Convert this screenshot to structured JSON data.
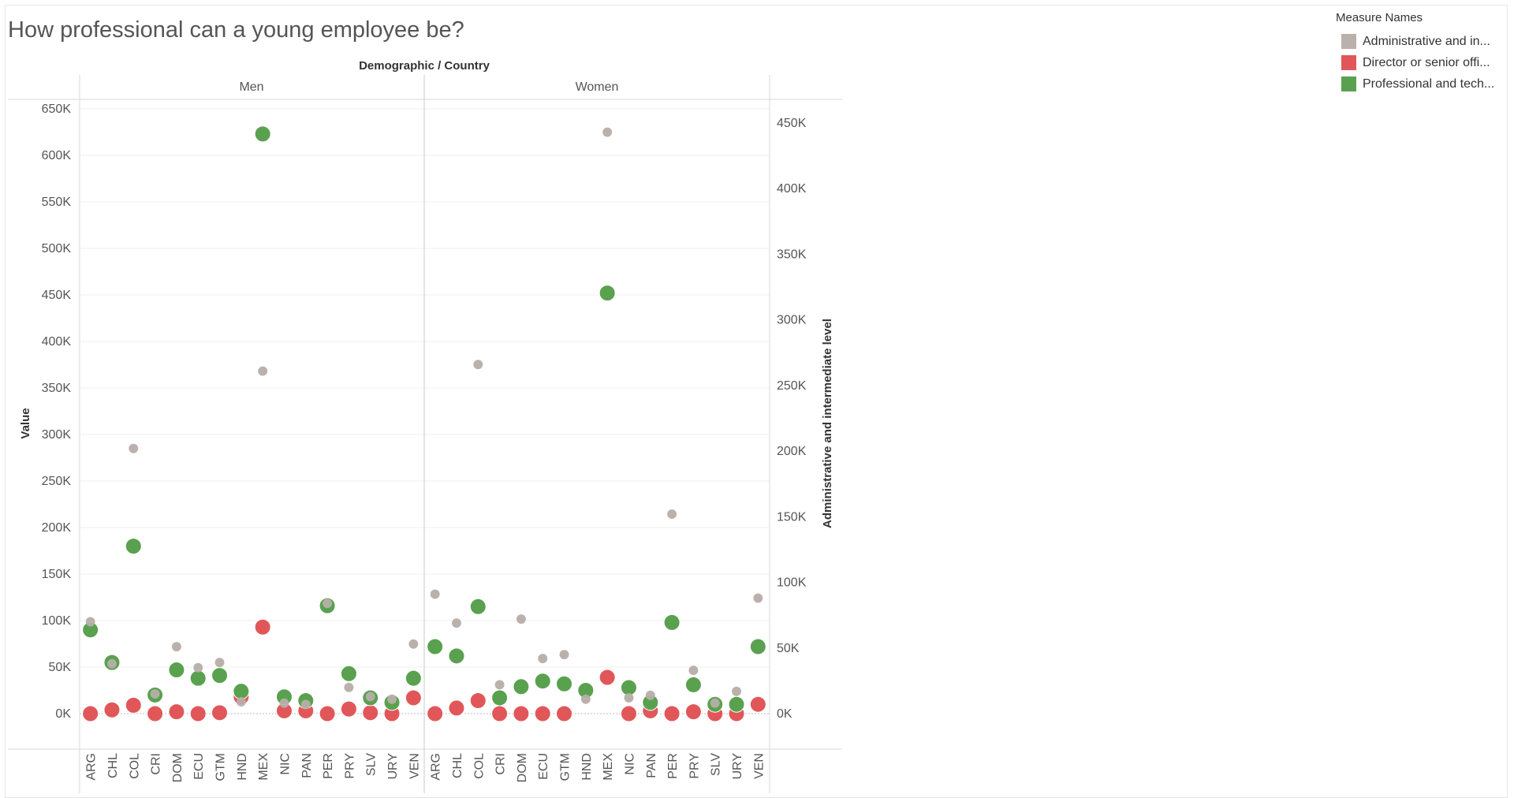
{
  "title": "How professional can a young employee be?",
  "legend": {
    "title": "Measure Names",
    "items": [
      {
        "label": "Administrative and in...",
        "color": "#bab0ac"
      },
      {
        "label": "Director or senior offi...",
        "color": "#e15759"
      },
      {
        "label": "Professional and tech...",
        "color": "#59a14f"
      }
    ]
  },
  "chart_data": {
    "type": "scatter",
    "title": "How professional can a young employee be?",
    "column_header": "Demographic / Country",
    "ylabel": "Value",
    "y2label": "Administrative and intermediate level",
    "ylim": [
      0,
      650000
    ],
    "y2lim": [
      0,
      450000
    ],
    "y_ticks": [
      "0K",
      "50K",
      "100K",
      "150K",
      "200K",
      "250K",
      "300K",
      "350K",
      "400K",
      "450K",
      "500K",
      "550K",
      "600K",
      "650K"
    ],
    "y2_ticks": [
      "0K",
      "50K",
      "100K",
      "150K",
      "200K",
      "250K",
      "300K",
      "350K",
      "400K",
      "450K"
    ],
    "grid": true,
    "panels": [
      "Men",
      "Women"
    ],
    "categories": [
      "ARG",
      "CHL",
      "COL",
      "CRI",
      "DOM",
      "ECU",
      "GTM",
      "HND",
      "MEX",
      "NIC",
      "PAN",
      "PER",
      "PRY",
      "SLV",
      "URY",
      "VEN"
    ],
    "series": [
      {
        "name": "Administrative and in...",
        "axis": "right",
        "color": "#bab0ac",
        "values": {
          "Men": [
            70000,
            38000,
            202000,
            15000,
            51000,
            35000,
            39000,
            9000,
            261000,
            8000,
            7000,
            84000,
            20000,
            13000,
            11000,
            53000
          ],
          "Women": [
            91000,
            69000,
            266000,
            22000,
            72000,
            42000,
            45000,
            11000,
            443000,
            12000,
            14000,
            152000,
            33000,
            8000,
            17000,
            88000
          ]
        }
      },
      {
        "name": "Director or senior offi...",
        "axis": "left",
        "color": "#e15759",
        "values": {
          "Men": [
            0,
            4000,
            9000,
            0,
            2000,
            0,
            1000,
            18000,
            93000,
            3000,
            3000,
            0,
            5000,
            1000,
            0,
            17000
          ],
          "Women": [
            0,
            6000,
            14000,
            0,
            0,
            0,
            0,
            25000,
            39000,
            0,
            3000,
            0,
            2000,
            0,
            0,
            10000
          ]
        }
      },
      {
        "name": "Professional and tech...",
        "axis": "left",
        "color": "#59a14f",
        "values": {
          "Men": [
            90000,
            55000,
            180000,
            20000,
            47000,
            38000,
            41000,
            24000,
            623000,
            18000,
            14000,
            116000,
            43000,
            17000,
            12000,
            38000
          ],
          "Women": [
            72000,
            62000,
            115000,
            17000,
            29000,
            35000,
            32000,
            25000,
            452000,
            28000,
            12000,
            98000,
            31000,
            10000,
            10000,
            72000
          ]
        }
      }
    ]
  }
}
